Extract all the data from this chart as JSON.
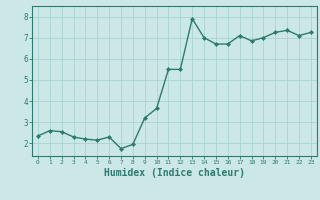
{
  "x": [
    0,
    1,
    2,
    3,
    4,
    5,
    6,
    7,
    8,
    9,
    10,
    11,
    12,
    13,
    14,
    15,
    16,
    17,
    18,
    19,
    20,
    21,
    22,
    23
  ],
  "y": [
    2.35,
    2.6,
    2.55,
    2.3,
    2.2,
    2.15,
    2.3,
    1.75,
    1.95,
    3.2,
    3.65,
    5.5,
    5.5,
    7.9,
    7.0,
    6.7,
    6.7,
    7.1,
    6.85,
    7.0,
    7.25,
    7.35,
    7.1,
    7.25
  ],
  "line_color": "#2d7a6e",
  "marker": "D",
  "marker_size": 2.0,
  "bg_color": "#cce8e6",
  "grid_color": "#a8d4d0",
  "axis_color": "#2d7a6e",
  "tick_color": "#2d7a6e",
  "xlabel": "Humidex (Indice chaleur)",
  "xlabel_fontsize": 7,
  "yticks": [
    2,
    3,
    4,
    5,
    6,
    7,
    8
  ],
  "ylim": [
    1.4,
    8.5
  ],
  "xlim": [
    -0.5,
    23.5
  ]
}
